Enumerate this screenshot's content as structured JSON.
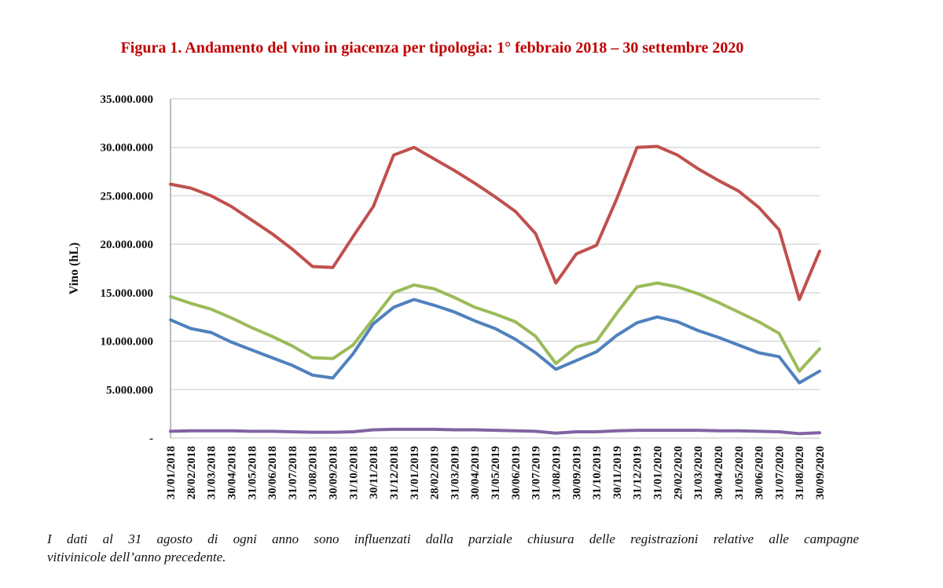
{
  "title": "Figura 1. Andamento del vino in giacenza per tipologia: 1° febbraio 2018 – 30 settembre 2020",
  "footnote": {
    "line1": "I dati al 31 agosto di ogni anno sono influenzati dalla parziale chiusura delle registrazioni relative alle campagne",
    "line2": "vitivinicole dell’anno precedente."
  },
  "chart_data": {
    "type": "line",
    "title": "Figura 1. Andamento del vino in giacenza per tipologia: 1° febbraio 2018 – 30 settembre 2020",
    "xlabel": "",
    "ylabel": "Vino (hL)",
    "ylim": [
      0,
      35000000
    ],
    "yticks": [
      0,
      5000000,
      10000000,
      15000000,
      20000000,
      25000000,
      30000000,
      35000000
    ],
    "ytick_labels": [
      "-",
      "5.000.000",
      "10.000.000",
      "15.000.000",
      "20.000.000",
      "25.000.000",
      "30.000.000",
      "35.000.000"
    ],
    "grid": "horizontal",
    "legend": "none",
    "categories": [
      "31/01/2018",
      "28/02/2018",
      "31/03/2018",
      "30/04/2018",
      "31/05/2018",
      "30/06/2018",
      "31/07/2018",
      "31/08/2018",
      "30/09/2018",
      "31/10/2018",
      "30/11/2018",
      "31/12/2018",
      "31/01/2019",
      "28/02/2019",
      "31/03/2019",
      "30/04/2019",
      "31/05/2019",
      "30/06/2019",
      "31/07/2019",
      "31/08/2019",
      "30/09/2019",
      "31/10/2019",
      "30/11/2019",
      "31/12/2019",
      "31/01/2020",
      "29/02/2020",
      "31/03/2020",
      "30/04/2020",
      "31/05/2020",
      "30/06/2020",
      "31/07/2020",
      "31/08/2020",
      "30/09/2020"
    ],
    "series": [
      {
        "color": "#c0504d",
        "values": [
          26200000,
          25800000,
          25000000,
          23900000,
          22500000,
          21100000,
          19500000,
          17700000,
          17600000,
          20800000,
          23900000,
          29200000,
          30000000,
          28800000,
          27600000,
          26300000,
          24900000,
          23400000,
          21100000,
          16000000,
          19000000,
          19900000,
          24700000,
          30000000,
          30100000,
          29200000,
          27800000,
          26600000,
          25500000,
          23800000,
          21500000,
          14300000,
          19300000
        ]
      },
      {
        "color": "#9bbb59",
        "values": [
          14600000,
          13900000,
          13300000,
          12400000,
          11400000,
          10500000,
          9500000,
          8300000,
          8200000,
          9600000,
          12300000,
          15000000,
          15800000,
          15400000,
          14500000,
          13500000,
          12800000,
          12000000,
          10500000,
          7700000,
          9400000,
          10000000,
          12900000,
          15600000,
          16000000,
          15600000,
          14900000,
          14000000,
          13000000,
          12000000,
          10800000,
          6900000,
          9200000
        ]
      },
      {
        "color": "#4f81bd",
        "values": [
          12200000,
          11300000,
          10900000,
          9900000,
          9100000,
          8300000,
          7500000,
          6500000,
          6200000,
          8700000,
          11800000,
          13500000,
          14300000,
          13700000,
          13000000,
          12100000,
          11300000,
          10200000,
          8800000,
          7100000,
          8000000,
          8900000,
          10600000,
          11900000,
          12500000,
          12000000,
          11100000,
          10400000,
          9600000,
          8800000,
          8400000,
          5700000,
          6900000
        ]
      },
      {
        "color": "#8064a2",
        "values": [
          700000,
          750000,
          750000,
          750000,
          700000,
          700000,
          650000,
          600000,
          600000,
          650000,
          850000,
          900000,
          900000,
          900000,
          850000,
          850000,
          800000,
          750000,
          700000,
          500000,
          650000,
          650000,
          750000,
          800000,
          800000,
          800000,
          800000,
          750000,
          750000,
          700000,
          650000,
          450000,
          550000
        ]
      }
    ]
  }
}
